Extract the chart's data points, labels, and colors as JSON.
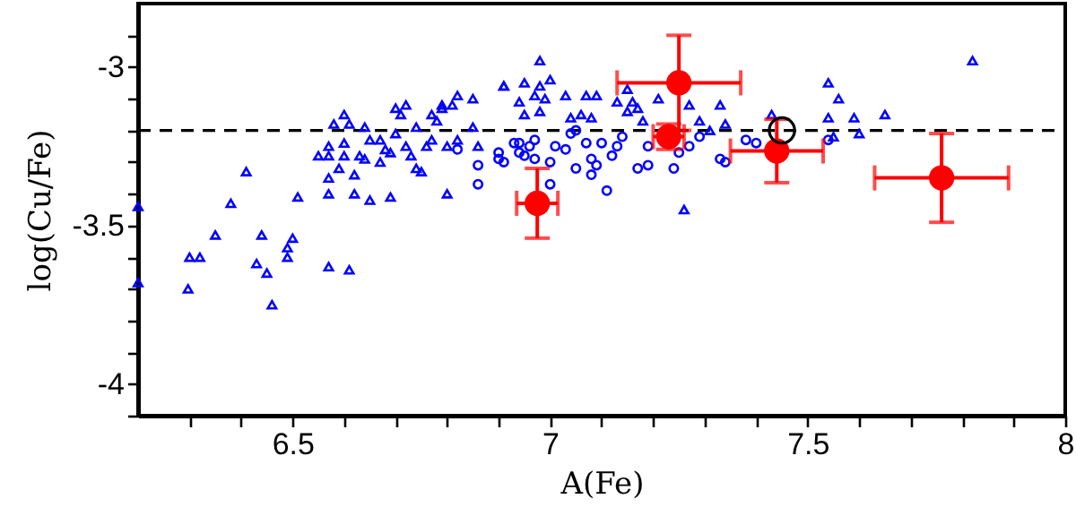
{
  "chart_data": {
    "type": "scatter",
    "xlabel": "A(Fe)",
    "ylabel": "log(Cu/Fe)",
    "xlim": [
      6.2,
      8
    ],
    "ylim": [
      -4.1,
      -2.8
    ],
    "xticks": [
      {
        "value": 6.3,
        "label": null
      },
      {
        "value": 6.4,
        "label": null
      },
      6.5,
      {
        "value": 6.6,
        "label": null
      },
      {
        "value": 6.7,
        "label": null
      },
      {
        "value": 6.8,
        "label": null
      },
      {
        "value": 6.9,
        "label": null
      },
      7,
      {
        "value": 7.1,
        "label": null
      },
      {
        "value": 7.2,
        "label": null
      },
      {
        "value": 7.3,
        "label": null
      },
      {
        "value": 7.4,
        "label": null
      },
      7.5,
      {
        "value": 7.6,
        "label": null
      },
      {
        "value": 7.7,
        "label": null
      },
      {
        "value": 7.8,
        "label": null
      },
      {
        "value": 7.9,
        "label": null
      },
      8
    ],
    "yticks": [
      {
        "value": -4.1,
        "label": null
      },
      -4,
      {
        "value": -3.9,
        "label": null
      },
      {
        "value": -3.8,
        "label": null
      },
      {
        "value": -3.7,
        "label": null
      },
      {
        "value": -3.6,
        "label": null
      },
      -3.5,
      {
        "value": -3.4,
        "label": null
      },
      {
        "value": -3.3,
        "label": null
      },
      {
        "value": -3.2,
        "label": null
      },
      {
        "value": -3.1,
        "label": null
      },
      -3,
      {
        "value": -2.9,
        "label": null
      }
    ],
    "grid": false,
    "ref_lines": [
      {
        "axis": "y",
        "value": -3.2,
        "color": "#000000",
        "line_style": "dashed"
      }
    ],
    "series": [
      {
        "color": "#0000ff",
        "marker": "triangle",
        "x": [
          6.2,
          6.2,
          6.297,
          6.3,
          6.32,
          6.35,
          6.38,
          6.41,
          6.43,
          6.44,
          6.45,
          6.46,
          6.49,
          6.49,
          6.5,
          6.51,
          6.55,
          6.57,
          6.57,
          6.57,
          6.57,
          6.57,
          6.58,
          6.59,
          6.6,
          6.6,
          6.6,
          6.61,
          6.61,
          6.62,
          6.62,
          6.63,
          6.64,
          6.64,
          6.65,
          6.65,
          6.67,
          6.67,
          6.68,
          6.69,
          6.69,
          6.7,
          6.7,
          6.71,
          6.72,
          6.72,
          6.73,
          6.74,
          6.74,
          6.75,
          6.76,
          6.77,
          6.77,
          6.78,
          6.79,
          6.79,
          6.8,
          6.8,
          6.81,
          6.82,
          6.82,
          6.85,
          6.85,
          6.86,
          6.91,
          6.91,
          6.95,
          6.98,
          6.98,
          7.0,
          6.94,
          6.95,
          6.97,
          6.98,
          6.99,
          7.03,
          7.07,
          7.09,
          7.13,
          7.15,
          7.16,
          7.15,
          7.21,
          7.27,
          7.33,
          7.34,
          7.31,
          7.29,
          7.26,
          7.43,
          7.54,
          7.56,
          7.54,
          7.59,
          7.65,
          7.6,
          7.55,
          7.82,
          7.04,
          7.06,
          7.08,
          7.18,
          7.17
        ],
        "values": [
          -3.44,
          -3.68,
          -3.7,
          -3.6,
          -3.6,
          -3.53,
          -3.43,
          -3.33,
          -3.62,
          -3.53,
          -3.65,
          -3.75,
          -3.57,
          -3.6,
          -3.54,
          -3.41,
          -3.28,
          -3.25,
          -3.28,
          -3.35,
          -3.4,
          -3.63,
          -3.18,
          -3.32,
          -3.15,
          -3.24,
          -3.28,
          -3.64,
          -3.18,
          -3.4,
          -3.34,
          -3.28,
          -3.29,
          -3.19,
          -3.42,
          -3.23,
          -3.3,
          -3.23,
          -3.26,
          -3.41,
          -3.27,
          -3.13,
          -3.21,
          -3.15,
          -3.12,
          -3.25,
          -3.28,
          -3.32,
          -3.19,
          -3.33,
          -3.25,
          -3.23,
          -3.15,
          -3.17,
          -3.13,
          -3.12,
          -3.25,
          -3.4,
          -3.12,
          -3.09,
          -3.23,
          -3.19,
          -3.1,
          -3.25,
          -3.06,
          -3.06,
          -3.05,
          -2.98,
          -3.06,
          -3.04,
          -3.11,
          -3.15,
          -3.09,
          -3.14,
          -3.1,
          -3.09,
          -3.09,
          -3.09,
          -3.11,
          -3.07,
          -3.11,
          -3.14,
          -3.1,
          -3.12,
          -3.12,
          -3.18,
          -3.2,
          -3.17,
          -3.45,
          -3.15,
          -3.05,
          -3.1,
          -3.16,
          -3.16,
          -3.15,
          -3.21,
          -3.22,
          -2.98,
          -3.16,
          -3.15,
          -3.16,
          -3.17,
          -3.13
        ]
      },
      {
        "color": "#0000ff",
        "marker": "circle",
        "x": [
          6.82,
          6.86,
          6.86,
          6.9,
          6.91,
          6.94,
          6.95,
          6.9,
          6.93,
          6.94,
          6.96,
          6.97,
          7.0,
          7.0,
          7.01,
          7.03,
          7.05,
          7.05,
          7.07,
          7.08,
          7.08,
          7.09,
          7.1,
          7.11,
          7.12,
          7.13,
          7.14,
          7.17,
          7.19,
          7.19,
          7.22,
          7.24,
          7.25,
          7.27,
          7.29,
          7.33,
          7.34,
          7.38,
          7.4,
          7.54,
          6.97,
          7.04
        ],
        "values": [
          -3.26,
          -3.31,
          -3.37,
          -3.27,
          -3.3,
          -3.24,
          -3.28,
          -3.29,
          -3.24,
          -3.27,
          -3.25,
          -3.29,
          -3.3,
          -3.37,
          -3.25,
          -3.26,
          -3.32,
          -3.2,
          -3.24,
          -3.29,
          -3.34,
          -3.31,
          -3.24,
          -3.39,
          -3.28,
          -3.25,
          -3.22,
          -3.32,
          -3.31,
          -3.25,
          null,
          -3.32,
          -3.27,
          -3.25,
          -3.22,
          -3.29,
          -3.3,
          -3.23,
          -3.24,
          -3.23,
          -3.23,
          -3.21
        ]
      },
      {
        "color": "#ff0000",
        "marker": "circle",
        "x": [
          6.975,
          7.25,
          7.23,
          7.44,
          7.76
        ],
        "values": [
          -3.43,
          -3.05,
          -3.22,
          -3.265,
          -3.35
        ],
        "errors": [
          0.11,
          0.15,
          0.04,
          0.1,
          0.14
        ],
        "xerrors": [
          0.04,
          0.12,
          0.03,
          0.09,
          0.13
        ]
      },
      {
        "color": "#000000",
        "marker": "circle",
        "x": [
          7.45
        ],
        "values": [
          -3.2
        ]
      }
    ]
  }
}
